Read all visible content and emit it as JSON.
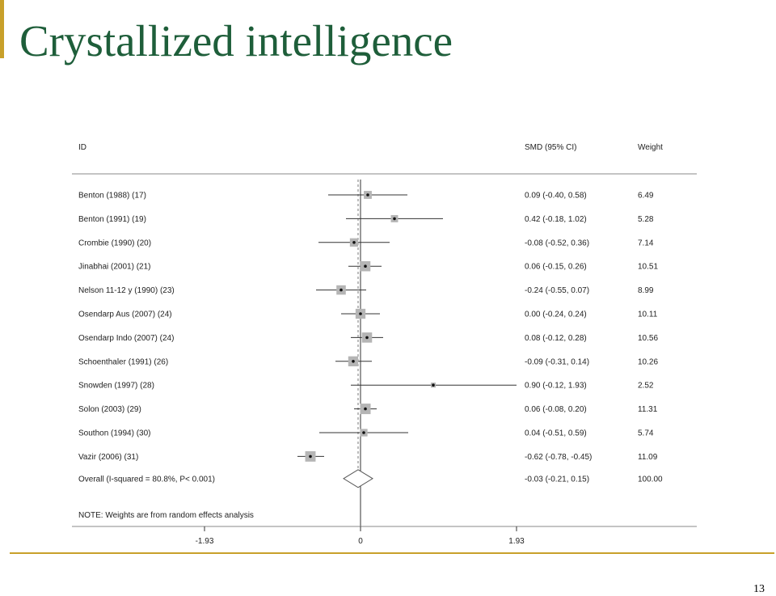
{
  "slide": {
    "title": "Crystallized intelligence",
    "page_number": "13",
    "accent_color": "#c8a02a",
    "title_color": "#1e5e3a"
  },
  "chart_data": {
    "type": "forest",
    "columns": {
      "id": "ID",
      "estimate": "SMD (95% CI)",
      "weight": "Weight"
    },
    "x_ticks": [
      -1.93,
      0,
      1.93
    ],
    "x_tick_labels": [
      "-1.93",
      "0",
      "1.93"
    ],
    "xlim": [
      -1.93,
      1.93
    ],
    "studies": [
      {
        "id": "Benton (1988) (17)",
        "smd": 0.09,
        "lo": -0.4,
        "hi": 0.58,
        "ci_text": "0.09 (-0.40, 0.58)",
        "weight": 6.49,
        "weight_text": "6.49"
      },
      {
        "id": "Benton (1991) (19)",
        "smd": 0.42,
        "lo": -0.18,
        "hi": 1.02,
        "ci_text": "0.42 (-0.18, 1.02)",
        "weight": 5.28,
        "weight_text": "5.28"
      },
      {
        "id": "Crombie (1990) (20)",
        "smd": -0.08,
        "lo": -0.52,
        "hi": 0.36,
        "ci_text": "-0.08 (-0.52, 0.36)",
        "weight": 7.14,
        "weight_text": "7.14"
      },
      {
        "id": "Jinabhai (2001) (21)",
        "smd": 0.06,
        "lo": -0.15,
        "hi": 0.26,
        "ci_text": "0.06 (-0.15, 0.26)",
        "weight": 10.51,
        "weight_text": "10.51"
      },
      {
        "id": "Nelson 11-12 y (1990) (23)",
        "smd": -0.24,
        "lo": -0.55,
        "hi": 0.07,
        "ci_text": "-0.24 (-0.55, 0.07)",
        "weight": 8.99,
        "weight_text": "8.99"
      },
      {
        "id": "Osendarp Aus (2007) (24)",
        "smd": 0.0,
        "lo": -0.24,
        "hi": 0.24,
        "ci_text": "0.00 (-0.24, 0.24)",
        "weight": 10.11,
        "weight_text": "10.11"
      },
      {
        "id": "Osendarp Indo (2007) (24)",
        "smd": 0.08,
        "lo": -0.12,
        "hi": 0.28,
        "ci_text": "0.08 (-0.12, 0.28)",
        "weight": 10.56,
        "weight_text": "10.56"
      },
      {
        "id": "Schoenthaler (1991) (26)",
        "smd": -0.09,
        "lo": -0.31,
        "hi": 0.14,
        "ci_text": "-0.09 (-0.31, 0.14)",
        "weight": 10.26,
        "weight_text": "10.26"
      },
      {
        "id": "Snowden (1997) (28)",
        "smd": 0.9,
        "lo": -0.12,
        "hi": 1.93,
        "ci_text": "0.90 (-0.12, 1.93)",
        "weight": 2.52,
        "weight_text": "2.52"
      },
      {
        "id": "Solon (2003) (29)",
        "smd": 0.06,
        "lo": -0.08,
        "hi": 0.2,
        "ci_text": "0.06 (-0.08, 0.20)",
        "weight": 11.31,
        "weight_text": "11.31"
      },
      {
        "id": "Southon (1994) (30)",
        "smd": 0.04,
        "lo": -0.51,
        "hi": 0.59,
        "ci_text": "0.04 (-0.51, 0.59)",
        "weight": 5.74,
        "weight_text": "5.74"
      },
      {
        "id": "Vazir (2006) (31)",
        "smd": -0.62,
        "lo": -0.78,
        "hi": -0.45,
        "ci_text": "-0.62 (-0.78, -0.45)",
        "weight": 11.09,
        "weight_text": "11.09"
      }
    ],
    "overall": {
      "id": "Overall  (I-squared = 80.8%, P< 0.001)",
      "smd": -0.03,
      "lo": -0.21,
      "hi": 0.15,
      "ci_text": "-0.03 (-0.21, 0.15)",
      "weight_text": "100.00"
    },
    "note": "NOTE: Weights are from random effects analysis"
  }
}
